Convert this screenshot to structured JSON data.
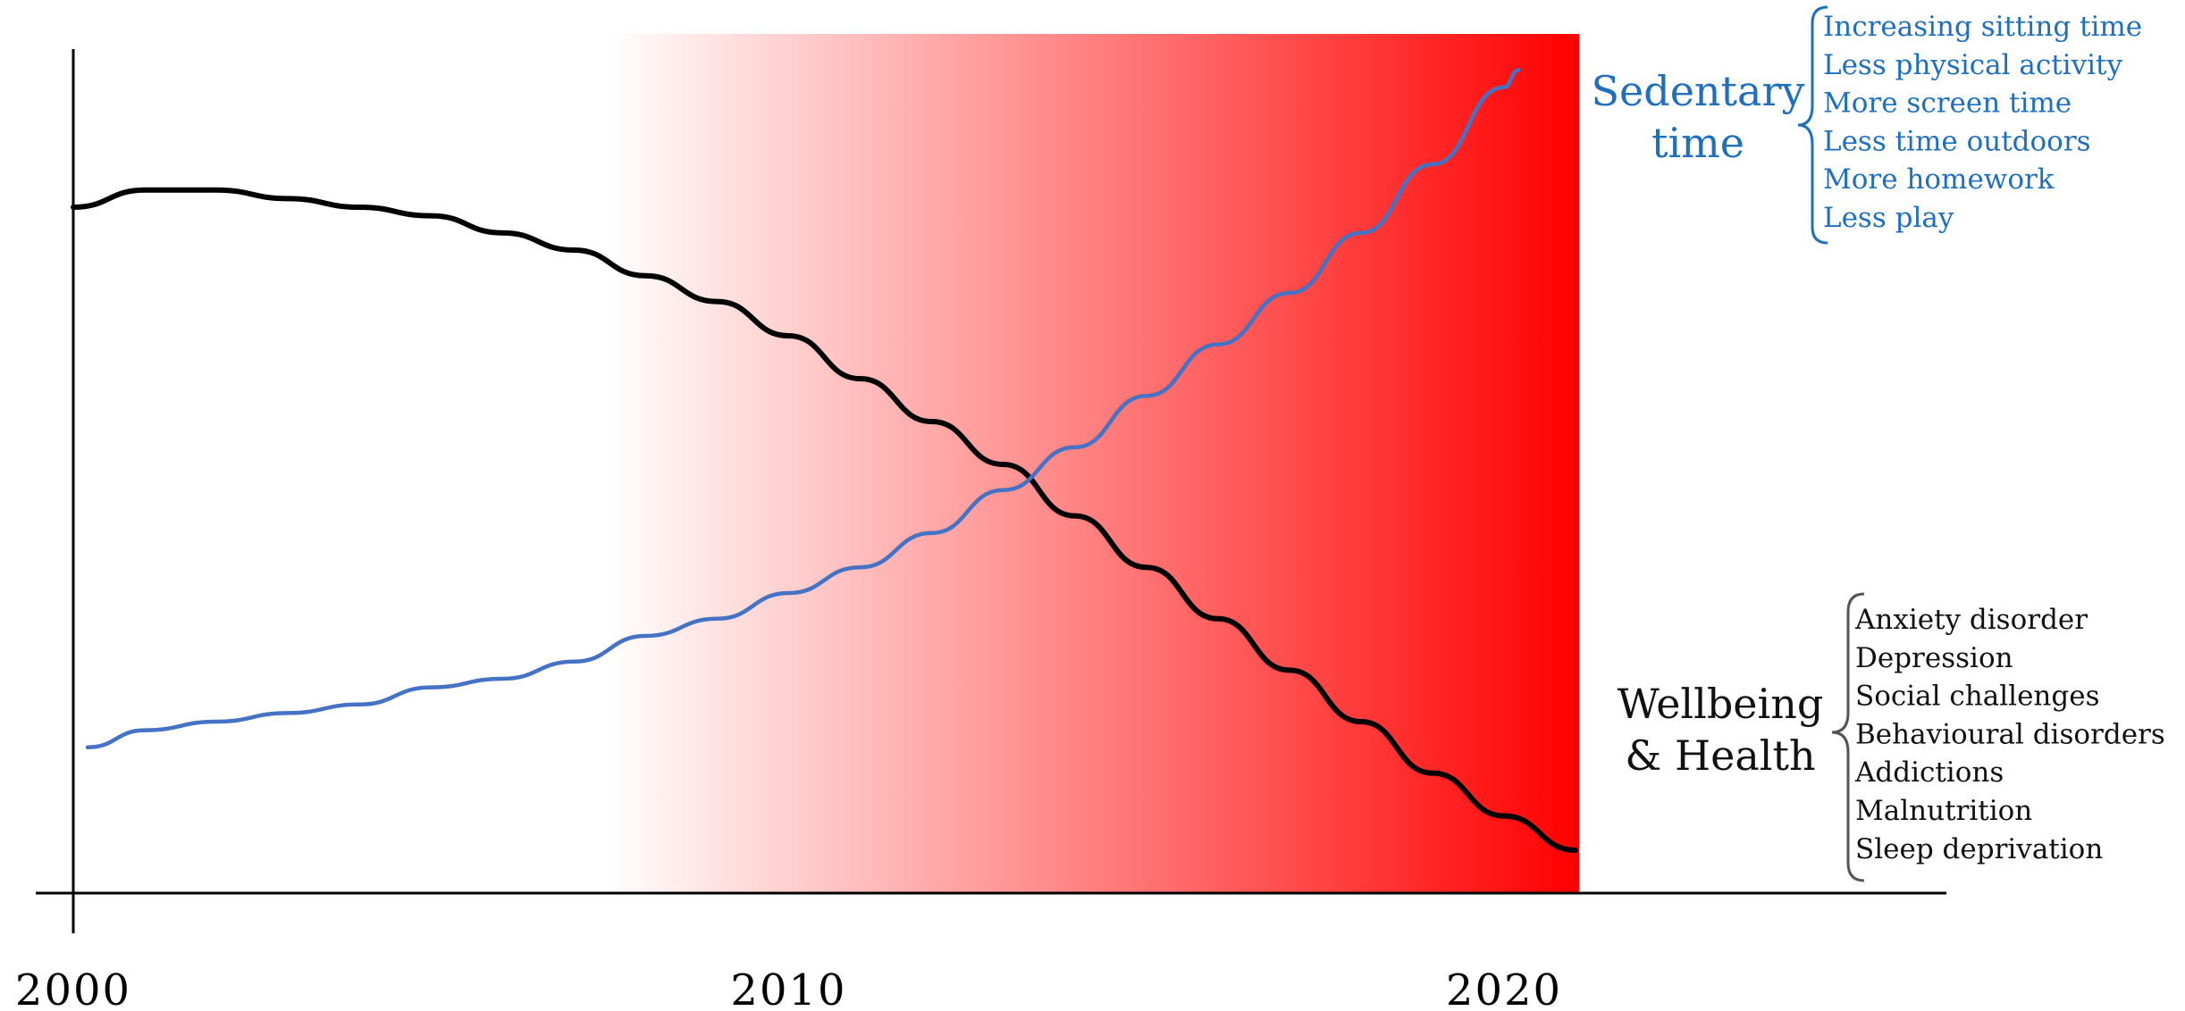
{
  "chart_data": {
    "type": "line",
    "title": "",
    "xlabel": "",
    "ylabel": "",
    "xlim": [
      2000,
      2026
    ],
    "ylim": [
      0,
      100
    ],
    "x_ticks": [
      {
        "value": 2000,
        "label": "2000"
      },
      {
        "value": 2010,
        "label": "2010"
      },
      {
        "value": 2020,
        "label": "2020"
      }
    ],
    "grid": false,
    "highlight_band": {
      "x_start": 2007.45,
      "x_end": 2021.05,
      "color_start": "#ffffff",
      "color_end": "#ff0000"
    },
    "series": [
      {
        "name": "",
        "color": "#000000",
        "x": [
          2000.0,
          2001.0,
          2002.0,
          2003.0,
          2004.0,
          2005.0,
          2006.0,
          2007.0,
          2008.0,
          2009.0,
          2010.0,
          2011.0,
          2012.0,
          2013.0,
          2014.0,
          2015.0,
          2016.0,
          2017.0,
          2018.0,
          2019.0,
          2020.0,
          2021.0
        ],
        "y": [
          80,
          82,
          82,
          81,
          80,
          79,
          77,
          75,
          72,
          69,
          65,
          60,
          55,
          50,
          44,
          38,
          32,
          26,
          20,
          14,
          9,
          5
        ]
      },
      {
        "name": "",
        "color": "#4472c4",
        "x": [
          2000.2,
          2001.0,
          2002.0,
          2003.0,
          2004.0,
          2005.0,
          2006.0,
          2007.0,
          2008.0,
          2009.0,
          2010.0,
          2011.0,
          2012.0,
          2013.0,
          2014.0,
          2015.0,
          2016.0,
          2017.0,
          2018.0,
          2019.0,
          2020.0,
          2020.2
        ],
        "y": [
          17,
          19,
          20,
          21,
          22,
          24,
          25,
          27,
          30,
          32,
          35,
          38,
          42,
          47,
          52,
          58,
          64,
          70,
          77,
          85,
          94,
          96
        ]
      }
    ]
  },
  "annotations": {
    "sedentary": {
      "title_lines": [
        "Sedentary",
        "time"
      ],
      "color": "#1f6fc0",
      "items": [
        "Increasing sitting time",
        "Less physical activity",
        "More screen time",
        "Less time outdoors",
        "More homework",
        "Less play"
      ]
    },
    "wellbeing": {
      "title_lines": [
        "Wellbeing",
        "& Health"
      ],
      "color": "#111111",
      "items": [
        "Anxiety disorder",
        "Depression",
        "Social challenges",
        "Behavioural disorders",
        "Addictions",
        "Malnutrition",
        "Sleep deprivation"
      ]
    }
  }
}
